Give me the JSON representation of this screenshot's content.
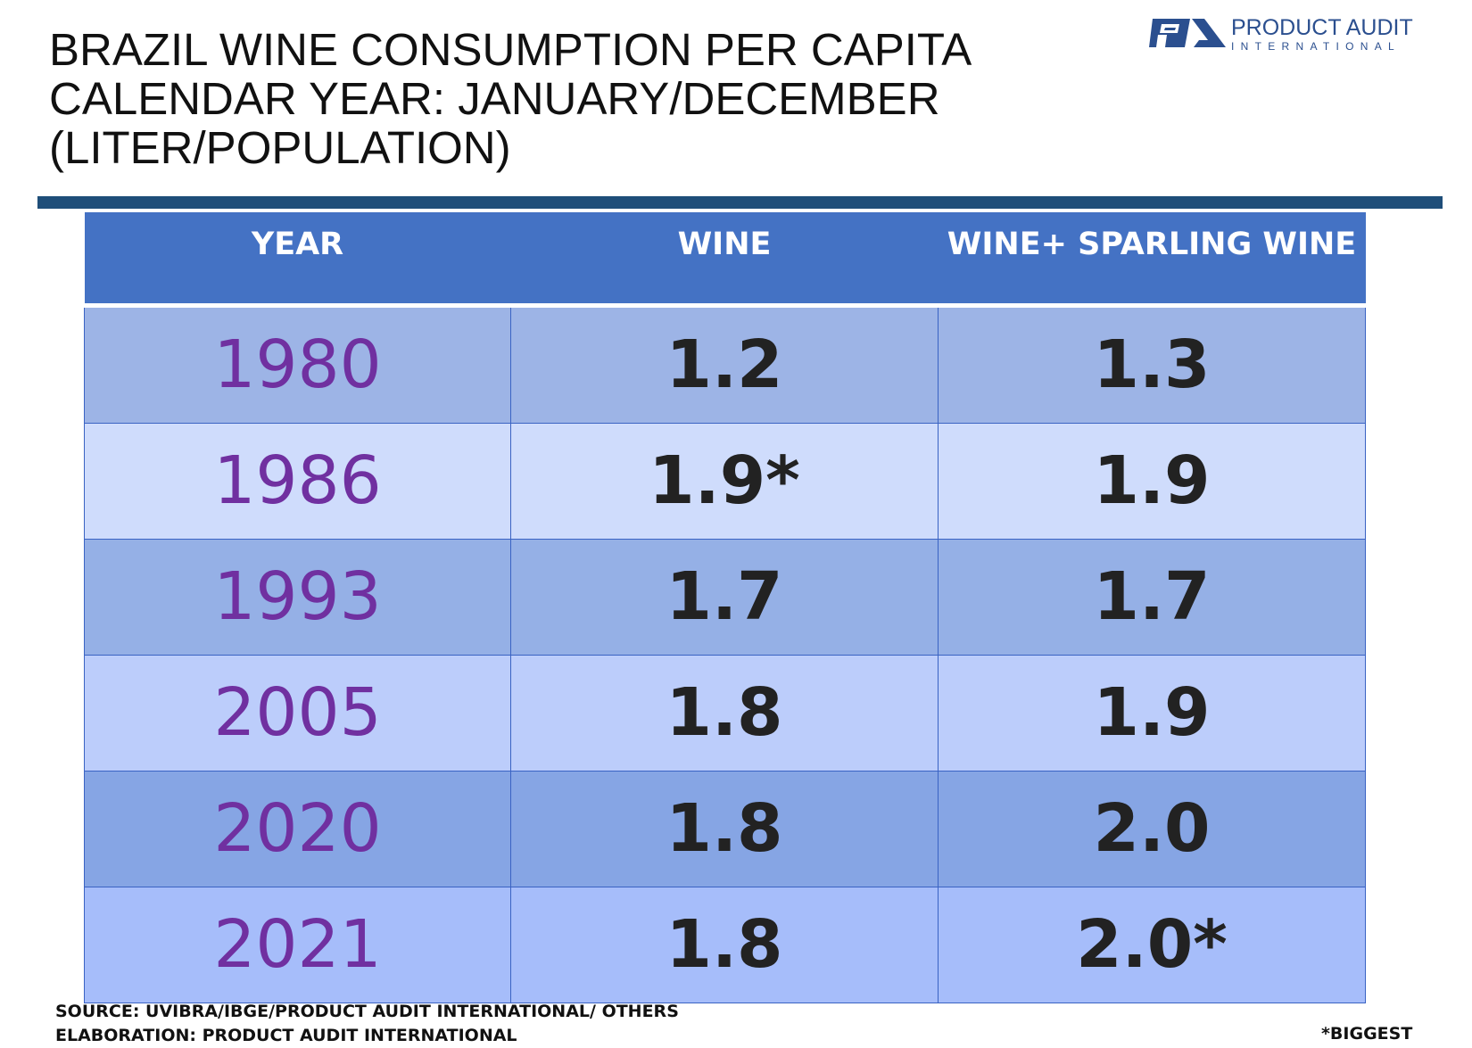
{
  "title": {
    "line1": "BRAZIL WINE CONSUMPTION PER CAPITA",
    "line2": "CALENDAR YEAR: JANUARY/DECEMBER",
    "line3": "(LITER/POPULATION)"
  },
  "logo": {
    "name": "PRODUCT AUDIT",
    "subtitle": "INTERNATIONAL",
    "mark_color": "#2b4f8f"
  },
  "table": {
    "headers": [
      "YEAR",
      "WINE",
      "WINE+ SPARLING WINE"
    ],
    "rows": [
      {
        "year": "1980",
        "wine": "1.2",
        "wine_sparkling": "1.3"
      },
      {
        "year": "1986",
        "wine": "1.9*",
        "wine_sparkling": "1.9"
      },
      {
        "year": "1993",
        "wine": "1.7",
        "wine_sparkling": "1.7"
      },
      {
        "year": "2005",
        "wine": "1.8",
        "wine_sparkling": "1.9"
      },
      {
        "year": "2020",
        "wine": "1.8",
        "wine_sparkling": "2.0"
      },
      {
        "year": "2021",
        "wine": "1.8",
        "wine_sparkling": "2.0*"
      }
    ]
  },
  "footer": {
    "source": "SOURCE: UVIBRA/IBGE/PRODUCT AUDIT INTERNATIONAL/ OTHERS",
    "elaboration": "ELABORATION: PRODUCT AUDIT INTERNATIONAL",
    "note": "*BIGGEST"
  },
  "colors": {
    "header_bg": "#4472c4",
    "year_text": "#7030a0",
    "rule": "#1f4e79"
  }
}
